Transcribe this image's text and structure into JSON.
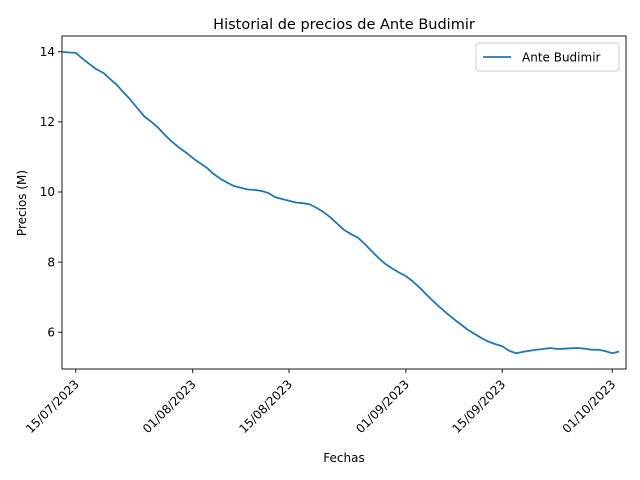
{
  "chart_data": {
    "type": "line",
    "title": "Historial de precios de Ante Budimir",
    "xlabel": "Fechas",
    "ylabel": "Precios (M)",
    "xlim": [
      "2023-07-13",
      "2023-10-03"
    ],
    "ylim": [
      4.95,
      14.45
    ],
    "x_ticks": [
      {
        "date": "2023-07-15",
        "label": "15/07/2023"
      },
      {
        "date": "2023-08-01",
        "label": "01/08/2023"
      },
      {
        "date": "2023-08-15",
        "label": "15/08/2023"
      },
      {
        "date": "2023-09-01",
        "label": "01/09/2023"
      },
      {
        "date": "2023-09-15",
        "label": "15/09/2023"
      },
      {
        "date": "2023-10-01",
        "label": "01/10/2023"
      }
    ],
    "y_ticks": [
      6,
      8,
      10,
      12,
      14
    ],
    "legend": {
      "position": "top-right",
      "entries": [
        "Ante Budimir"
      ]
    },
    "grid": false,
    "series": [
      {
        "name": "Ante Budimir",
        "color": "#1f77b4",
        "points": [
          [
            "2023-07-13",
            14.0
          ],
          [
            "2023-07-14",
            13.98
          ],
          [
            "2023-07-15",
            13.97
          ],
          [
            "2023-07-16",
            13.8
          ],
          [
            "2023-07-17",
            13.65
          ],
          [
            "2023-07-18",
            13.5
          ],
          [
            "2023-07-19",
            13.4
          ],
          [
            "2023-07-20",
            13.22
          ],
          [
            "2023-07-21",
            13.05
          ],
          [
            "2023-07-22",
            12.83
          ],
          [
            "2023-07-23",
            12.62
          ],
          [
            "2023-07-24",
            12.38
          ],
          [
            "2023-07-25",
            12.15
          ],
          [
            "2023-07-26",
            12.0
          ],
          [
            "2023-07-27",
            11.83
          ],
          [
            "2023-07-28",
            11.62
          ],
          [
            "2023-07-29",
            11.43
          ],
          [
            "2023-07-30",
            11.27
          ],
          [
            "2023-07-31",
            11.13
          ],
          [
            "2023-08-01",
            10.97
          ],
          [
            "2023-08-02",
            10.83
          ],
          [
            "2023-08-03",
            10.7
          ],
          [
            "2023-08-04",
            10.52
          ],
          [
            "2023-08-05",
            10.38
          ],
          [
            "2023-08-06",
            10.27
          ],
          [
            "2023-08-07",
            10.17
          ],
          [
            "2023-08-08",
            10.12
          ],
          [
            "2023-08-09",
            10.07
          ],
          [
            "2023-08-10",
            10.06
          ],
          [
            "2023-08-11",
            10.03
          ],
          [
            "2023-08-12",
            9.97
          ],
          [
            "2023-08-13",
            9.85
          ],
          [
            "2023-08-14",
            9.8
          ],
          [
            "2023-08-15",
            9.75
          ],
          [
            "2023-08-16",
            9.7
          ],
          [
            "2023-08-17",
            9.68
          ],
          [
            "2023-08-18",
            9.65
          ],
          [
            "2023-08-19",
            9.55
          ],
          [
            "2023-08-20",
            9.43
          ],
          [
            "2023-08-21",
            9.28
          ],
          [
            "2023-08-22",
            9.1
          ],
          [
            "2023-08-23",
            8.92
          ],
          [
            "2023-08-24",
            8.8
          ],
          [
            "2023-08-25",
            8.7
          ],
          [
            "2023-08-26",
            8.52
          ],
          [
            "2023-08-27",
            8.32
          ],
          [
            "2023-08-28",
            8.12
          ],
          [
            "2023-08-29",
            7.95
          ],
          [
            "2023-08-30",
            7.82
          ],
          [
            "2023-08-31",
            7.7
          ],
          [
            "2023-09-01",
            7.6
          ],
          [
            "2023-09-02",
            7.45
          ],
          [
            "2023-09-03",
            7.27
          ],
          [
            "2023-09-04",
            7.07
          ],
          [
            "2023-09-05",
            6.88
          ],
          [
            "2023-09-06",
            6.7
          ],
          [
            "2023-09-07",
            6.53
          ],
          [
            "2023-09-08",
            6.37
          ],
          [
            "2023-09-09",
            6.22
          ],
          [
            "2023-09-10",
            6.07
          ],
          [
            "2023-09-11",
            5.95
          ],
          [
            "2023-09-12",
            5.83
          ],
          [
            "2023-09-13",
            5.73
          ],
          [
            "2023-09-14",
            5.66
          ],
          [
            "2023-09-15",
            5.6
          ],
          [
            "2023-09-16",
            5.47
          ],
          [
            "2023-09-17",
            5.4
          ],
          [
            "2023-09-18",
            5.44
          ],
          [
            "2023-09-19",
            5.47
          ],
          [
            "2023-09-20",
            5.5
          ],
          [
            "2023-09-21",
            5.52
          ],
          [
            "2023-09-22",
            5.55
          ],
          [
            "2023-09-23",
            5.52
          ],
          [
            "2023-09-24",
            5.53
          ],
          [
            "2023-09-25",
            5.54
          ],
          [
            "2023-09-26",
            5.55
          ],
          [
            "2023-09-27",
            5.53
          ],
          [
            "2023-09-28",
            5.5
          ],
          [
            "2023-09-29",
            5.5
          ],
          [
            "2023-09-30",
            5.46
          ],
          [
            "2023-10-01",
            5.4
          ],
          [
            "2023-10-02",
            5.45
          ]
        ]
      }
    ]
  }
}
